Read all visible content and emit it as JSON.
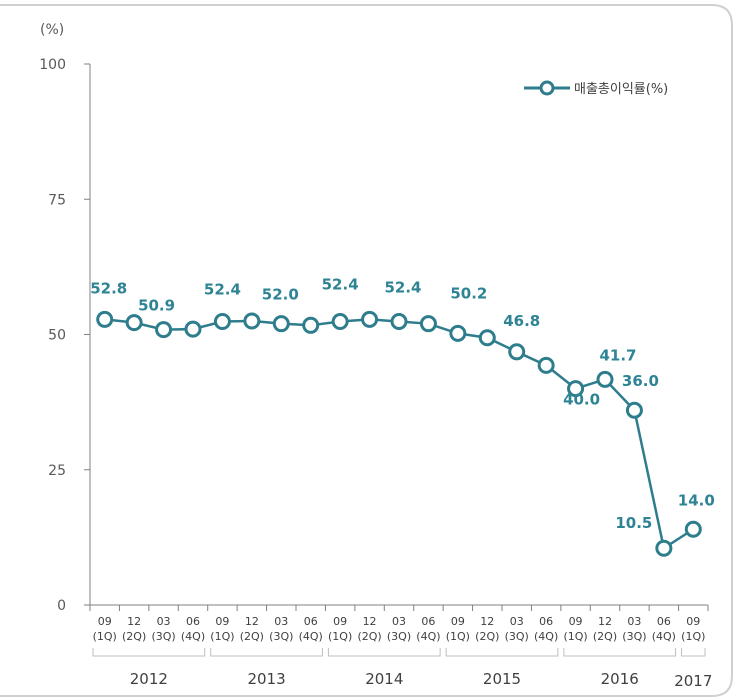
{
  "chart_data": {
    "type": "line",
    "ylabel": "(%)",
    "ylim": [
      0,
      100
    ],
    "yticks": [
      "0",
      "25",
      "50",
      "75",
      "100"
    ],
    "grid": false,
    "legend_position": "top-right",
    "colors": {
      "line": "#2e7d8c",
      "label": "#2e8494",
      "axis": "#808080"
    },
    "series": [
      {
        "name": "매출총이익률(%)",
        "values": [
          52.8,
          52.2,
          50.9,
          51.0,
          52.4,
          52.5,
          52.0,
          51.7,
          52.4,
          52.8,
          52.4,
          52.0,
          50.2,
          49.4,
          46.8,
          44.3,
          40.0,
          41.7,
          36.0,
          10.5,
          14.0
        ]
      }
    ],
    "x_months": [
      "09",
      "12",
      "03",
      "06",
      "09",
      "12",
      "03",
      "06",
      "09",
      "12",
      "03",
      "06",
      "09",
      "12",
      "03",
      "06",
      "09",
      "12",
      "03",
      "06",
      "09"
    ],
    "x_quarters": [
      "(1Q)",
      "(2Q)",
      "(3Q)",
      "(4Q)",
      "(1Q)",
      "(2Q)",
      "(3Q)",
      "(4Q)",
      "(1Q)",
      "(2Q)",
      "(3Q)",
      "(4Q)",
      "(1Q)",
      "(2Q)",
      "(3Q)",
      "(4Q)",
      "(1Q)",
      "(2Q)",
      "(3Q)",
      "(4Q)",
      "(1Q)"
    ],
    "years": [
      {
        "label": "2012",
        "start": 0,
        "end": 3
      },
      {
        "label": "2013",
        "start": 4,
        "end": 7
      },
      {
        "label": "2014",
        "start": 8,
        "end": 11
      },
      {
        "label": "2015",
        "start": 12,
        "end": 15
      },
      {
        "label": "2016",
        "start": 16,
        "end": 19
      },
      {
        "label": "2017",
        "start": 20,
        "end": 20
      }
    ],
    "data_labels": [
      {
        "index": 0,
        "text": "52.8"
      },
      {
        "index": 2,
        "text": "50.9"
      },
      {
        "index": 4,
        "text": "52.4"
      },
      {
        "index": 6,
        "text": "52.0"
      },
      {
        "index": 8,
        "text": "52.4"
      },
      {
        "index": 10,
        "text": "52.4"
      },
      {
        "index": 12,
        "text": "50.2"
      },
      {
        "index": 14,
        "text": "46.8"
      },
      {
        "index": 16,
        "text": "40.0"
      },
      {
        "index": 17,
        "text": "41.7"
      },
      {
        "index": 18,
        "text": "36.0"
      },
      {
        "index": 19,
        "text": "10.5"
      },
      {
        "index": 20,
        "text": "14.0"
      }
    ]
  }
}
